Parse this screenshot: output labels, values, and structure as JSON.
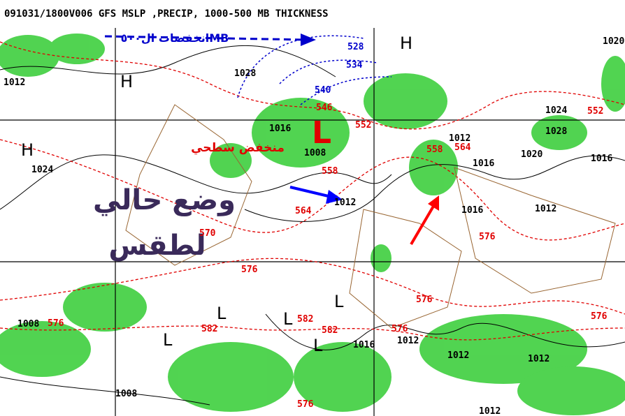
{
  "header": {
    "title": "091031/1800V006 GFS MSLP ,PRECIP, 1000-500 MB THICKNESS"
  },
  "annotations": {
    "surface_low": "منخفض سطحي",
    "current_weather_1": "وضع حالي",
    "current_weather_2": "لطقس",
    "upper_lows": "انخفضات ال٥٠٠MB",
    "low_symbol": "L"
  },
  "pressure_labels": [
    1012,
    1028,
    1024,
    1016,
    1008,
    1012,
    1012,
    1016,
    1016,
    1020,
    1012,
    1024,
    1028,
    1016,
    1020,
    1008,
    1016,
    1012,
    1012,
    1012,
    1008,
    1012
  ],
  "thickness_labels": [
    546,
    552,
    558,
    564,
    558,
    564,
    570,
    576,
    576,
    576,
    576,
    582,
    582,
    582,
    576,
    576,
    576,
    552
  ],
  "upper_labels": [
    528,
    534,
    540
  ],
  "centers": [
    "H",
    "H",
    "H",
    "L",
    "L",
    "L",
    "L",
    "L"
  ]
}
